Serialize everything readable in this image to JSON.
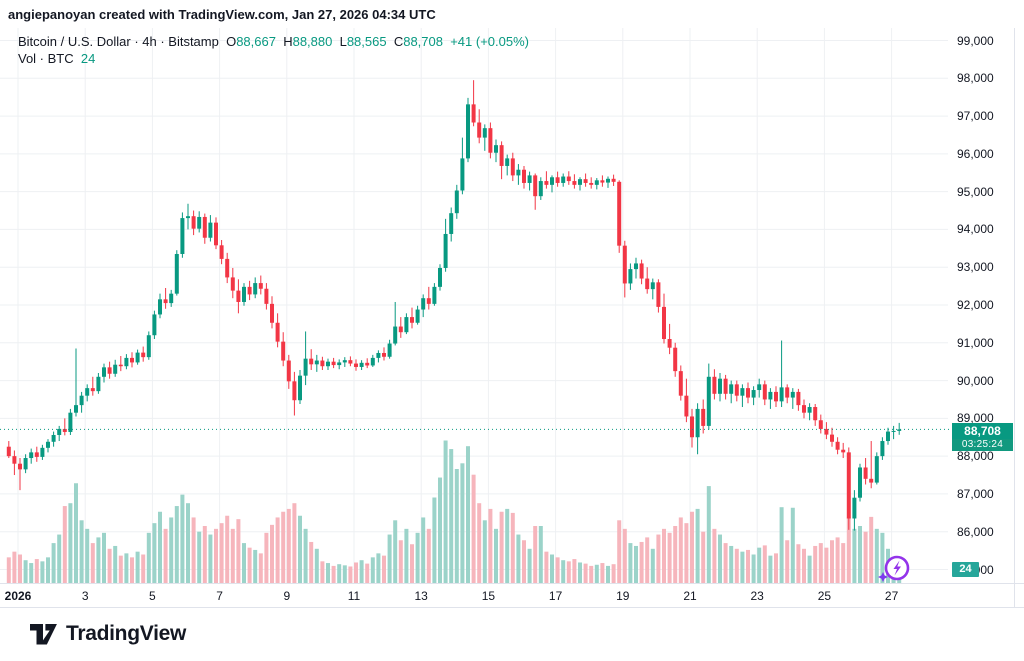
{
  "attribution": "angiepanoyan created with TradingView.com, Jan 27, 2026 04:34 UTC",
  "header": {
    "symbol_title": "Bitcoin / U.S. Dollar · 4h · Bitstamp",
    "o_label": "O",
    "o": "88,667",
    "h_label": "H",
    "h": "88,880",
    "l_label": "L",
    "l": "88,565",
    "c_label": "C",
    "c": "88,708",
    "change": "+41 (+0.05%)",
    "volume_label": "Vol · BTC",
    "volume_value": "24"
  },
  "price_scale": {
    "labels": [
      "99,000",
      "98,000",
      "97,000",
      "96,000",
      "95,000",
      "94,000",
      "93,000",
      "92,000",
      "91,000",
      "90,000",
      "89,000",
      "88,000",
      "87,000",
      "86,000",
      "85,000"
    ],
    "current_price_badge": {
      "price": "88,708",
      "countdown": "03:25:24"
    },
    "volume_badge": "24"
  },
  "time_scale": {
    "ticks": [
      {
        "day": 1,
        "label": "2026",
        "bold": true
      },
      {
        "day": 3,
        "label": "3"
      },
      {
        "day": 5,
        "label": "5"
      },
      {
        "day": 7,
        "label": "7"
      },
      {
        "day": 9,
        "label": "9"
      },
      {
        "day": 11,
        "label": "11"
      },
      {
        "day": 13,
        "label": "13"
      },
      {
        "day": 15,
        "label": "15"
      },
      {
        "day": 17,
        "label": "17"
      },
      {
        "day": 19,
        "label": "19"
      },
      {
        "day": 21,
        "label": "21"
      },
      {
        "day": 23,
        "label": "23"
      },
      {
        "day": 25,
        "label": "25"
      },
      {
        "day": 27,
        "label": "27"
      }
    ]
  },
  "footer_logo": "TradingView",
  "colors": {
    "up": "#089981",
    "down": "#f23645",
    "vol_up": "#9bd3c9",
    "vol_down": "#f6b5bc",
    "grid": "#eef0f3",
    "border": "#e0e3eb",
    "axis_text": "#131722",
    "accent": "#089981",
    "marker_purple": "#9333ea"
  },
  "chart_data": {
    "type": "candlestick+volume",
    "title": "Bitcoin / U.S. Dollar",
    "exchange": "Bitstamp",
    "interval": "4h",
    "legend_ohlc": {
      "open": 88667,
      "high": 88880,
      "low": 88565,
      "close": 88708,
      "change": 41,
      "change_pct": 0.05
    },
    "current_price": 88708,
    "countdown": "03:25:24",
    "last_volume_btc": 24,
    "y_axis": {
      "min": 85000,
      "max": 99000,
      "step": 1000
    },
    "x_axis": {
      "start": "2026-01-01",
      "end": "2026-01-27 04:00 UTC",
      "grid": "every 2 days"
    },
    "legend_position": "top-left",
    "candles_note": "4h OHLCV candles, chronological, values in USD read from chart; v = volume in BTC",
    "candles": [
      [
        88250,
        88400,
        87950,
        88000,
        45
      ],
      [
        88000,
        88150,
        87500,
        87800,
        55
      ],
      [
        87800,
        87950,
        87100,
        87650,
        50
      ],
      [
        87650,
        88050,
        87550,
        87950,
        40
      ],
      [
        87950,
        88200,
        87800,
        88100,
        35
      ],
      [
        88100,
        88250,
        87850,
        87980,
        42
      ],
      [
        87980,
        88300,
        87900,
        88220,
        38
      ],
      [
        88220,
        88450,
        88100,
        88380,
        45
      ],
      [
        88380,
        88650,
        88250,
        88560,
        70
      ],
      [
        88560,
        88800,
        88400,
        88720,
        85
      ],
      [
        88720,
        89000,
        88550,
        88640,
        135
      ],
      [
        88640,
        89250,
        88560,
        89150,
        140
      ],
      [
        89150,
        90850,
        89050,
        89350,
        175
      ],
      [
        89350,
        89700,
        89150,
        89600,
        110
      ],
      [
        89600,
        89900,
        89450,
        89800,
        95
      ],
      [
        89800,
        90100,
        89600,
        89720,
        70
      ],
      [
        89720,
        90200,
        89650,
        90100,
        80
      ],
      [
        90100,
        90450,
        89950,
        90350,
        88
      ],
      [
        90350,
        90500,
        90050,
        90180,
        60
      ],
      [
        90180,
        90550,
        90100,
        90420,
        65
      ],
      [
        90420,
        90650,
        90250,
        90380,
        48
      ],
      [
        90380,
        90700,
        90300,
        90600,
        52
      ],
      [
        90600,
        90750,
        90350,
        90480,
        45
      ],
      [
        90480,
        90820,
        90420,
        90740,
        55
      ],
      [
        90740,
        90900,
        90500,
        90620,
        50
      ],
      [
        90620,
        91300,
        90550,
        91200,
        88
      ],
      [
        91200,
        91850,
        91100,
        91750,
        105
      ],
      [
        91750,
        92300,
        91650,
        92150,
        125
      ],
      [
        92150,
        92450,
        91900,
        92050,
        95
      ],
      [
        92050,
        92400,
        91950,
        92300,
        115
      ],
      [
        92300,
        93450,
        92250,
        93350,
        135
      ],
      [
        93350,
        94450,
        93250,
        94300,
        155
      ],
      [
        94300,
        94680,
        94000,
        94350,
        140
      ],
      [
        94350,
        94500,
        93850,
        94020,
        115
      ],
      [
        94020,
        94480,
        93920,
        94330,
        90
      ],
      [
        94330,
        94420,
        93620,
        93780,
        100
      ],
      [
        93780,
        94380,
        93680,
        94180,
        85
      ],
      [
        94180,
        94320,
        93480,
        93580,
        95
      ],
      [
        93580,
        93720,
        93080,
        93220,
        105
      ],
      [
        93220,
        93380,
        92580,
        92730,
        118
      ],
      [
        92730,
        92980,
        92180,
        92380,
        95
      ],
      [
        92380,
        92680,
        91780,
        92080,
        112
      ],
      [
        92080,
        92580,
        91980,
        92480,
        70
      ],
      [
        92480,
        92640,
        92130,
        92280,
        62
      ],
      [
        92280,
        92730,
        92180,
        92580,
        58
      ],
      [
        92580,
        92780,
        92280,
        92430,
        52
      ],
      [
        92430,
        92580,
        91880,
        92030,
        88
      ],
      [
        92030,
        92230,
        91380,
        91530,
        102
      ],
      [
        91530,
        91780,
        90880,
        91030,
        115
      ],
      [
        91030,
        91280,
        90380,
        90530,
        125
      ],
      [
        90530,
        90680,
        89780,
        89980,
        130
      ],
      [
        89980,
        90230,
        89075,
        89480,
        140
      ],
      [
        89480,
        90280,
        89380,
        90130,
        118
      ],
      [
        90130,
        91300,
        89880,
        90580,
        95
      ],
      [
        90580,
        90830,
        90280,
        90430,
        72
      ],
      [
        90430,
        90680,
        90230,
        90530,
        60
      ],
      [
        90530,
        90630,
        90280,
        90380,
        38
      ],
      [
        90380,
        90580,
        90280,
        90500,
        35
      ],
      [
        90500,
        90600,
        90330,
        90410,
        30
      ],
      [
        90410,
        90560,
        90300,
        90480,
        33
      ],
      [
        90480,
        90620,
        90360,
        90540,
        31
      ],
      [
        90540,
        90640,
        90380,
        90450,
        29
      ],
      [
        90450,
        90560,
        90260,
        90360,
        36
      ],
      [
        90360,
        90540,
        90280,
        90470,
        40
      ],
      [
        90470,
        90590,
        90330,
        90400,
        34
      ],
      [
        90400,
        90680,
        90360,
        90600,
        45
      ],
      [
        90600,
        90800,
        90480,
        90730,
        52
      ],
      [
        90730,
        90880,
        90530,
        90630,
        48
      ],
      [
        90630,
        91080,
        90580,
        90980,
        85
      ],
      [
        90980,
        92080,
        90930,
        91430,
        110
      ],
      [
        91430,
        91680,
        91130,
        91280,
        75
      ],
      [
        91280,
        91780,
        91230,
        91680,
        95
      ],
      [
        91680,
        91930,
        91380,
        91530,
        68
      ],
      [
        91530,
        91980,
        91480,
        91880,
        88
      ],
      [
        91880,
        92280,
        91680,
        92180,
        115
      ],
      [
        92180,
        92480,
        91880,
        92030,
        95
      ],
      [
        92030,
        92580,
        91980,
        92480,
        150
      ],
      [
        92480,
        93080,
        92380,
        92980,
        185
      ],
      [
        92980,
        94280,
        92880,
        93880,
        250
      ],
      [
        93880,
        94580,
        93680,
        94430,
        235
      ],
      [
        94430,
        95180,
        94280,
        95030,
        200
      ],
      [
        95030,
        96430,
        94930,
        95880,
        210
      ],
      [
        95880,
        97480,
        95780,
        97310,
        240
      ],
      [
        97310,
        97950,
        96730,
        96830,
        190
      ],
      [
        96830,
        97180,
        96280,
        96430,
        140
      ],
      [
        96430,
        96780,
        96080,
        96680,
        110
      ],
      [
        96680,
        96830,
        95880,
        96030,
        130
      ],
      [
        96030,
        96380,
        95780,
        96230,
        95
      ],
      [
        96230,
        96330,
        95330,
        95680,
        125
      ],
      [
        95680,
        95980,
        95430,
        95880,
        130
      ],
      [
        95880,
        96030,
        95280,
        95430,
        123
      ],
      [
        95430,
        95730,
        95180,
        95580,
        85
      ],
      [
        95580,
        95680,
        95080,
        95230,
        75
      ],
      [
        95230,
        95530,
        95030,
        95430,
        60
      ],
      [
        95430,
        95480,
        94520,
        94880,
        100
      ],
      [
        94880,
        95380,
        94780,
        95280,
        100
      ],
      [
        95280,
        95540,
        95080,
        95180,
        55
      ],
      [
        95180,
        95430,
        94980,
        95380,
        50
      ],
      [
        95380,
        95530,
        95130,
        95230,
        45
      ],
      [
        95230,
        95480,
        95130,
        95400,
        40
      ],
      [
        95400,
        95540,
        95180,
        95280,
        38
      ],
      [
        95280,
        95460,
        95080,
        95180,
        42
      ],
      [
        95180,
        95380,
        95030,
        95330,
        36
      ],
      [
        95330,
        95480,
        95130,
        95230,
        34
      ],
      [
        95230,
        95380,
        95080,
        95180,
        30
      ],
      [
        95180,
        95360,
        95060,
        95300,
        32
      ],
      [
        95300,
        95430,
        95130,
        95240,
        35
      ],
      [
        95240,
        95400,
        95100,
        95340,
        30
      ],
      [
        95340,
        95450,
        95150,
        95260,
        33
      ],
      [
        95260,
        95300,
        93380,
        93570,
        110
      ],
      [
        93570,
        93700,
        92200,
        92570,
        95
      ],
      [
        92570,
        93100,
        92400,
        92950,
        70
      ],
      [
        92950,
        93250,
        92700,
        93100,
        65
      ],
      [
        93100,
        93200,
        92550,
        92700,
        72
      ],
      [
        92700,
        93000,
        92300,
        92420,
        80
      ],
      [
        92420,
        92700,
        92150,
        92600,
        60
      ],
      [
        92600,
        92680,
        91800,
        91950,
        85
      ],
      [
        91950,
        92300,
        90980,
        91100,
        95
      ],
      [
        91100,
        91500,
        90700,
        90870,
        88
      ],
      [
        90870,
        91000,
        90100,
        90250,
        100
      ],
      [
        90250,
        90400,
        89470,
        89600,
        115
      ],
      [
        89600,
        90050,
        88900,
        89050,
        105
      ],
      [
        89050,
        89250,
        88230,
        88500,
        125
      ],
      [
        88500,
        89400,
        88050,
        89250,
        130
      ],
      [
        89250,
        89500,
        88600,
        88800,
        90
      ],
      [
        88800,
        90450,
        88700,
        90100,
        170
      ],
      [
        90100,
        90300,
        89500,
        89650,
        95
      ],
      [
        89650,
        90200,
        89450,
        90050,
        85
      ],
      [
        90050,
        90150,
        89500,
        89650,
        70
      ],
      [
        89650,
        90000,
        89400,
        89900,
        65
      ],
      [
        89900,
        90000,
        89450,
        89600,
        60
      ],
      [
        89600,
        89900,
        89300,
        89800,
        55
      ],
      [
        89800,
        89950,
        89400,
        89550,
        58
      ],
      [
        89550,
        89850,
        89350,
        89750,
        50
      ],
      [
        89750,
        90050,
        89550,
        89900,
        62
      ],
      [
        89900,
        90000,
        89350,
        89500,
        66
      ],
      [
        89500,
        89800,
        89250,
        89700,
        48
      ],
      [
        89700,
        89850,
        89300,
        89450,
        52
      ],
      [
        89450,
        91060,
        89300,
        89820,
        133
      ],
      [
        89820,
        89900,
        89400,
        89550,
        75
      ],
      [
        89550,
        89800,
        89250,
        89700,
        132
      ],
      [
        89700,
        89780,
        89200,
        89350,
        68
      ],
      [
        89350,
        89500,
        89000,
        89150,
        60
      ],
      [
        89150,
        89400,
        88950,
        89300,
        48
      ],
      [
        89300,
        89380,
        88800,
        88950,
        65
      ],
      [
        88950,
        89100,
        88600,
        88720,
        70
      ],
      [
        88720,
        88900,
        88450,
        88570,
        62
      ],
      [
        88570,
        88750,
        88250,
        88380,
        75
      ],
      [
        88380,
        88500,
        88050,
        88170,
        80
      ],
      [
        88170,
        88350,
        87950,
        88100,
        70
      ],
      [
        88100,
        88230,
        86050,
        86350,
        115
      ],
      [
        86350,
        87100,
        86030,
        86900,
        95
      ],
      [
        86900,
        87800,
        86800,
        87700,
        100
      ],
      [
        87700,
        87950,
        87250,
        87400,
        90
      ],
      [
        87400,
        88400,
        87150,
        87300,
        116
      ],
      [
        87300,
        88100,
        87250,
        88000,
        95
      ],
      [
        88000,
        88500,
        87900,
        88400,
        88
      ],
      [
        88400,
        88750,
        88300,
        88650,
        60
      ],
      [
        88650,
        88800,
        88450,
        88667,
        45
      ],
      [
        88667,
        88880,
        88565,
        88708,
        24
      ]
    ]
  }
}
